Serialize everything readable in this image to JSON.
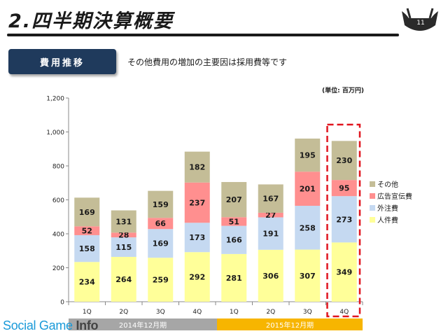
{
  "slide": {
    "title": "2.四半期決算概要",
    "page_number": "11",
    "section_label": "費用推移",
    "subtitle": "その他費用の増加の主要因は採用費等です",
    "unit_note": "(単位: 百万円)"
  },
  "periods": [
    {
      "label": "2014年12月期",
      "color": "#a6a6a6"
    },
    {
      "label": "2015年12月期",
      "color": "#f7b500"
    }
  ],
  "watermark": {
    "part1": "Social Game ",
    "part2": "Info"
  },
  "chart_data": {
    "type": "bar",
    "stacked": true,
    "categories": [
      "1Q",
      "2Q",
      "3Q",
      "4Q",
      "1Q",
      "2Q",
      "3Q",
      "4Q"
    ],
    "series": [
      {
        "name": "人件費",
        "color": "#ffff99",
        "values": [
          234,
          264,
          259,
          292,
          281,
          306,
          307,
          349
        ]
      },
      {
        "name": "外注費",
        "color": "#c5d9f1",
        "values": [
          158,
          115,
          169,
          173,
          166,
          191,
          258,
          273
        ]
      },
      {
        "name": "広告宣伝費",
        "color": "#ff8f8f",
        "values": [
          52,
          28,
          66,
          237,
          51,
          27,
          201,
          95
        ]
      },
      {
        "name": "その他",
        "color": "#c4bd97",
        "values": [
          169,
          131,
          159,
          182,
          207,
          167,
          195,
          230
        ]
      }
    ],
    "ylim": [
      0,
      1200
    ],
    "yticks": [
      0,
      200,
      400,
      600,
      800,
      1000,
      1200
    ],
    "ytick_labels": [
      "0",
      "200",
      "400",
      "600",
      "800",
      "1,000",
      "1,200"
    ],
    "grid": false,
    "legend": "right",
    "highlight_index": 7
  }
}
